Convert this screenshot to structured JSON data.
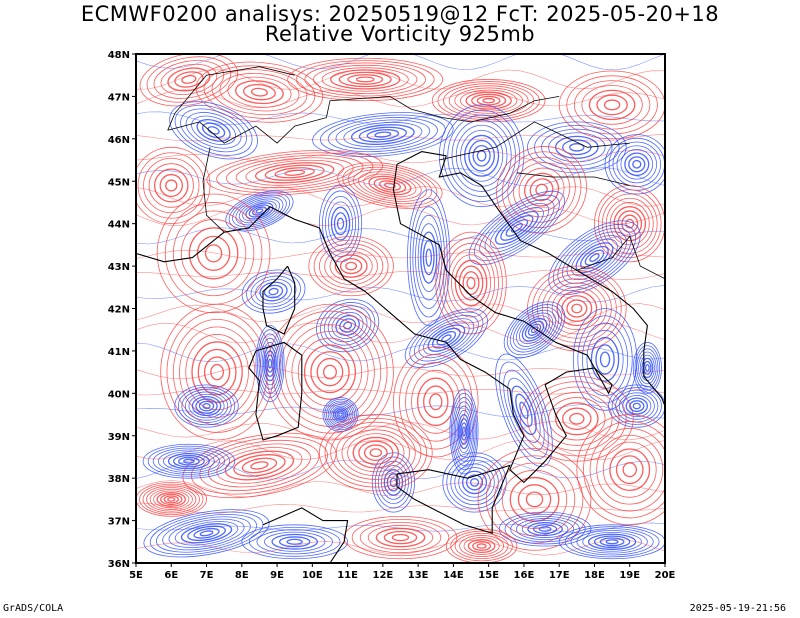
{
  "header": {
    "title_line1": "ECMWF0200 analisys: 20250519@12 FcT: 2025-05-20+18",
    "title_line2": "Relative Vorticity 925mb"
  },
  "map": {
    "lon_range": [
      5,
      20
    ],
    "lat_range": [
      36,
      48
    ],
    "x_tick_labels": [
      "5E",
      "6E",
      "7E",
      "8E",
      "9E",
      "10E",
      "11E",
      "12E",
      "13E",
      "14E",
      "15E",
      "16E",
      "17E",
      "18E",
      "19E",
      "20E"
    ],
    "y_tick_labels": [
      "36N",
      "37N",
      "38N",
      "39N",
      "40N",
      "41N",
      "42N",
      "43N",
      "44N",
      "45N",
      "46N",
      "47N",
      "48N"
    ],
    "colors": {
      "positive_contour": "#ff4040",
      "negative_contour": "#3050ff",
      "coastline": "#000000",
      "background": "#ffffff"
    }
  },
  "footer": {
    "left": "GrADS/COLA",
    "right": "2025-05-19-21:56"
  }
}
